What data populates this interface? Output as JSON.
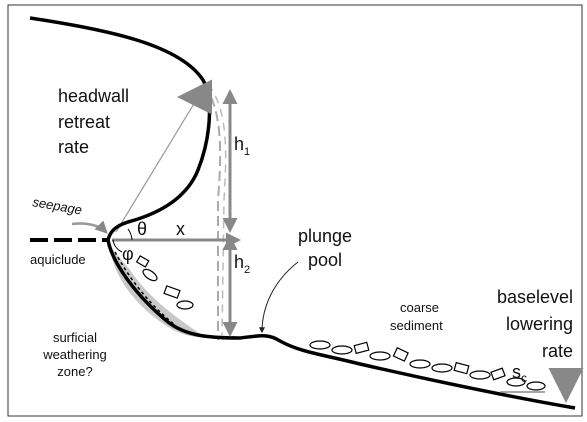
{
  "labels": {
    "headwall_retreat_rate": [
      "headwall",
      "retreat",
      "rate"
    ],
    "h1": {
      "base": "h",
      "sub": "1"
    },
    "h2": {
      "base": "h",
      "sub": "2"
    },
    "seepage": "seepage",
    "theta": "θ",
    "x": "x",
    "phi": "φ",
    "aquiclude": "aquiclude",
    "plunge_pool": [
      "plunge",
      "pool"
    ],
    "coarse_sediment": [
      "coarse",
      "sediment"
    ],
    "baselevel_lowering_rate": [
      "baselevel",
      "lowering",
      "rate"
    ],
    "surficial_weathering_zone": [
      "surficial",
      "weathering",
      "zone?"
    ],
    "sc": {
      "base": "s",
      "sub": "c"
    }
  }
}
